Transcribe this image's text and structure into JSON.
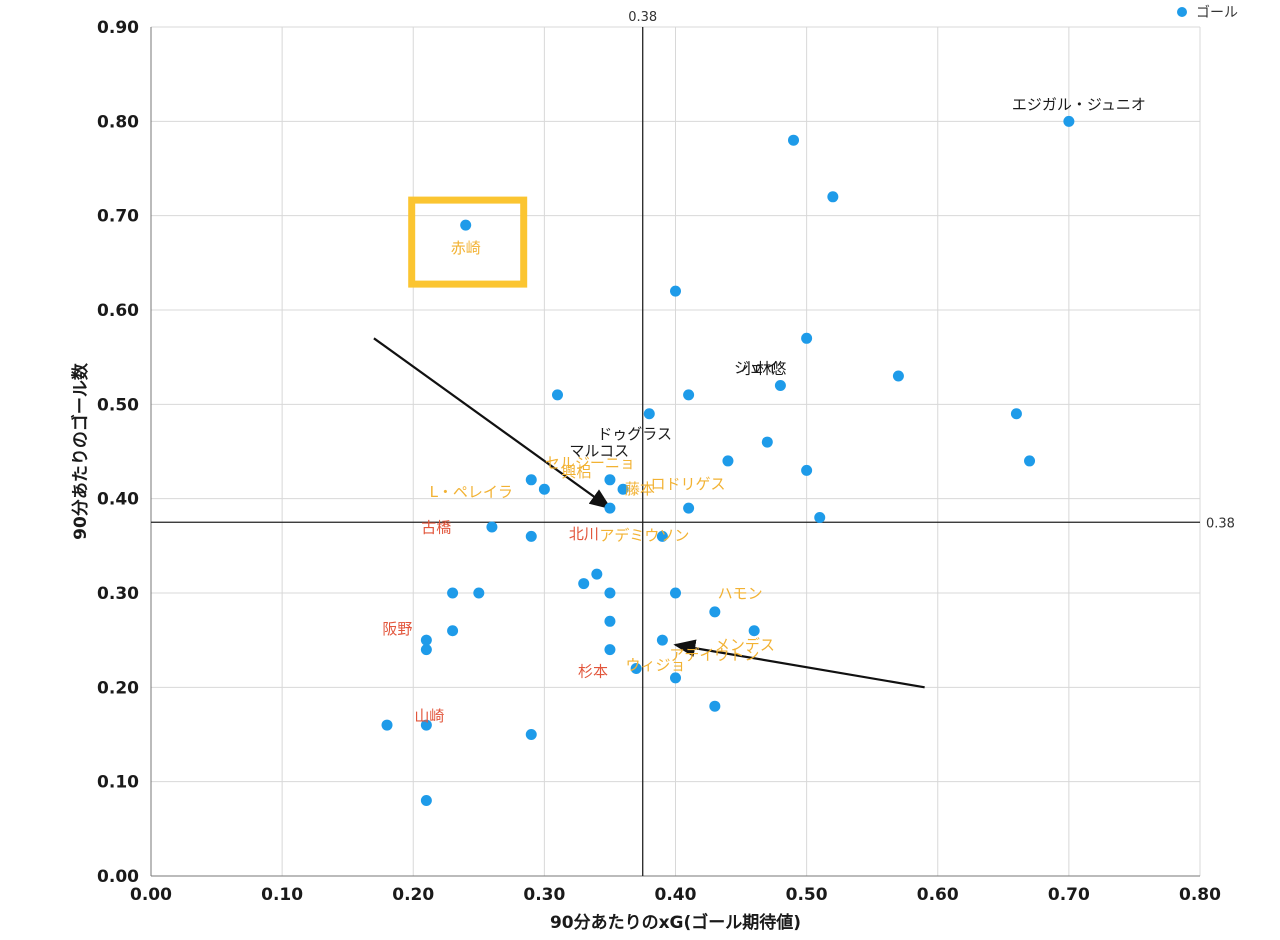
{
  "chart_data": {
    "type": "scatter",
    "xlabel": "90分あたりのxG(ゴール期待値)",
    "ylabel": "90分あたりのゴール数",
    "xlim": [
      0,
      0.8
    ],
    "ylim": [
      0,
      0.9
    ],
    "x_ticks": [
      "0.00",
      "0.10",
      "0.20",
      "0.30",
      "0.40",
      "0.50",
      "0.60",
      "0.70",
      "0.80"
    ],
    "y_ticks": [
      "0.00",
      "0.10",
      "0.20",
      "0.30",
      "0.40",
      "0.50",
      "0.60",
      "0.70",
      "0.80",
      "0.90"
    ],
    "grid": true,
    "legend": {
      "position": "top-right",
      "entries": [
        {
          "name": "ゴール",
          "color": "#1e9be9"
        }
      ]
    },
    "series": [
      {
        "name": "ゴール",
        "color": "#1e9be9",
        "points": [
          {
            "x": 0.24,
            "y": 0.69
          },
          {
            "x": 0.49,
            "y": 0.78
          },
          {
            "x": 0.52,
            "y": 0.72
          },
          {
            "x": 0.7,
            "y": 0.8
          },
          {
            "x": 0.4,
            "y": 0.62
          },
          {
            "x": 0.5,
            "y": 0.57
          },
          {
            "x": 0.31,
            "y": 0.51
          },
          {
            "x": 0.41,
            "y": 0.51
          },
          {
            "x": 0.48,
            "y": 0.52
          },
          {
            "x": 0.57,
            "y": 0.53
          },
          {
            "x": 0.66,
            "y": 0.49
          },
          {
            "x": 0.38,
            "y": 0.49
          },
          {
            "x": 0.47,
            "y": 0.46
          },
          {
            "x": 0.44,
            "y": 0.44
          },
          {
            "x": 0.5,
            "y": 0.43
          },
          {
            "x": 0.67,
            "y": 0.44
          },
          {
            "x": 0.29,
            "y": 0.42
          },
          {
            "x": 0.3,
            "y": 0.41
          },
          {
            "x": 0.35,
            "y": 0.42
          },
          {
            "x": 0.36,
            "y": 0.41
          },
          {
            "x": 0.35,
            "y": 0.39
          },
          {
            "x": 0.41,
            "y": 0.39
          },
          {
            "x": 0.51,
            "y": 0.38
          },
          {
            "x": 0.26,
            "y": 0.37
          },
          {
            "x": 0.29,
            "y": 0.36
          },
          {
            "x": 0.39,
            "y": 0.36
          },
          {
            "x": 0.34,
            "y": 0.32
          },
          {
            "x": 0.33,
            "y": 0.31
          },
          {
            "x": 0.23,
            "y": 0.3
          },
          {
            "x": 0.25,
            "y": 0.3
          },
          {
            "x": 0.35,
            "y": 0.3
          },
          {
            "x": 0.4,
            "y": 0.3
          },
          {
            "x": 0.43,
            "y": 0.28
          },
          {
            "x": 0.35,
            "y": 0.27
          },
          {
            "x": 0.23,
            "y": 0.26
          },
          {
            "x": 0.46,
            "y": 0.26
          },
          {
            "x": 0.21,
            "y": 0.25
          },
          {
            "x": 0.21,
            "y": 0.24
          },
          {
            "x": 0.39,
            "y": 0.25
          },
          {
            "x": 0.35,
            "y": 0.24
          },
          {
            "x": 0.37,
            "y": 0.22
          },
          {
            "x": 0.4,
            "y": 0.21
          },
          {
            "x": 0.43,
            "y": 0.18
          },
          {
            "x": 0.18,
            "y": 0.16
          },
          {
            "x": 0.21,
            "y": 0.16
          },
          {
            "x": 0.29,
            "y": 0.15
          },
          {
            "x": 0.21,
            "y": 0.08
          }
        ]
      }
    ],
    "reference_lines": {
      "x": 0.375,
      "y": 0.375,
      "x_label": "0.38",
      "y_label": "0.38"
    },
    "labels": [
      {
        "text": "エジガル・ジュニオ",
        "x": 0.7,
        "y": 0.8,
        "color": "#1a1a1a"
      },
      {
        "text": "赤崎",
        "x": 0.24,
        "y": 0.69,
        "color": "#f2b233"
      },
      {
        "text": "ドゥグラス",
        "x": 0.41,
        "y": 0.51,
        "color": "#1a1a1a"
      },
      {
        "text": "小林悠",
        "x": 0.48,
        "y": 0.52,
        "color": "#1a1a1a"
      },
      {
        "text": "ジェイ",
        "x": 0.5,
        "y": 0.57,
        "color": "#1a1a1a"
      },
      {
        "text": "マルコス",
        "x": 0.38,
        "y": 0.49,
        "color": "#1a1a1a"
      },
      {
        "text": "L・ペレイラ",
        "x": 0.29,
        "y": 0.42,
        "color": "#f2b233"
      },
      {
        "text": "セルジーニョ",
        "x": 0.35,
        "y": 0.42,
        "color": "#f2b233"
      },
      {
        "text": "興梠",
        "x": 0.3,
        "y": 0.41,
        "color": "#f2b233"
      },
      {
        "text": "藤本",
        "x": 0.35,
        "y": 0.39,
        "color": "#f2b233"
      },
      {
        "text": "ロドリゲス",
        "x": 0.44,
        "y": 0.44,
        "color": "#f2b233"
      },
      {
        "text": "アデミウソン",
        "x": 0.39,
        "y": 0.36,
        "color": "#f2b233"
      },
      {
        "text": "メンデス",
        "x": 0.43,
        "y": 0.28,
        "color": "#f2b233"
      },
      {
        "text": "ハモン",
        "x": 0.46,
        "y": 0.26,
        "color": "#f2b233"
      },
      {
        "text": "ウィジョ",
        "x": 0.4,
        "y": 0.21,
        "color": "#f2b233"
      },
      {
        "text": "アデイウトン",
        "x": 0.39,
        "y": 0.25,
        "color": "#f2b233"
      },
      {
        "text": "古橋",
        "x": 0.29,
        "y": 0.36,
        "color": "#e2553b"
      },
      {
        "text": "北川",
        "x": 0.35,
        "y": 0.3,
        "color": "#e2553b"
      },
      {
        "text": "阪野",
        "x": 0.21,
        "y": 0.25,
        "color": "#e2553b"
      },
      {
        "text": "山崎",
        "x": 0.21,
        "y": 0.16,
        "color": "#e2553b"
      },
      {
        "text": "杉本",
        "x": 0.35,
        "y": 0.24,
        "color": "#e2553b"
      }
    ],
    "highlight_box": {
      "x": 0.24,
      "y": 0.69,
      "color": "#fbc531"
    },
    "arrows": [
      {
        "from": [
          0.17,
          0.57
        ],
        "to": [
          0.35,
          0.39
        ]
      },
      {
        "from": [
          0.59,
          0.2
        ],
        "to": [
          0.4,
          0.245
        ]
      }
    ]
  }
}
